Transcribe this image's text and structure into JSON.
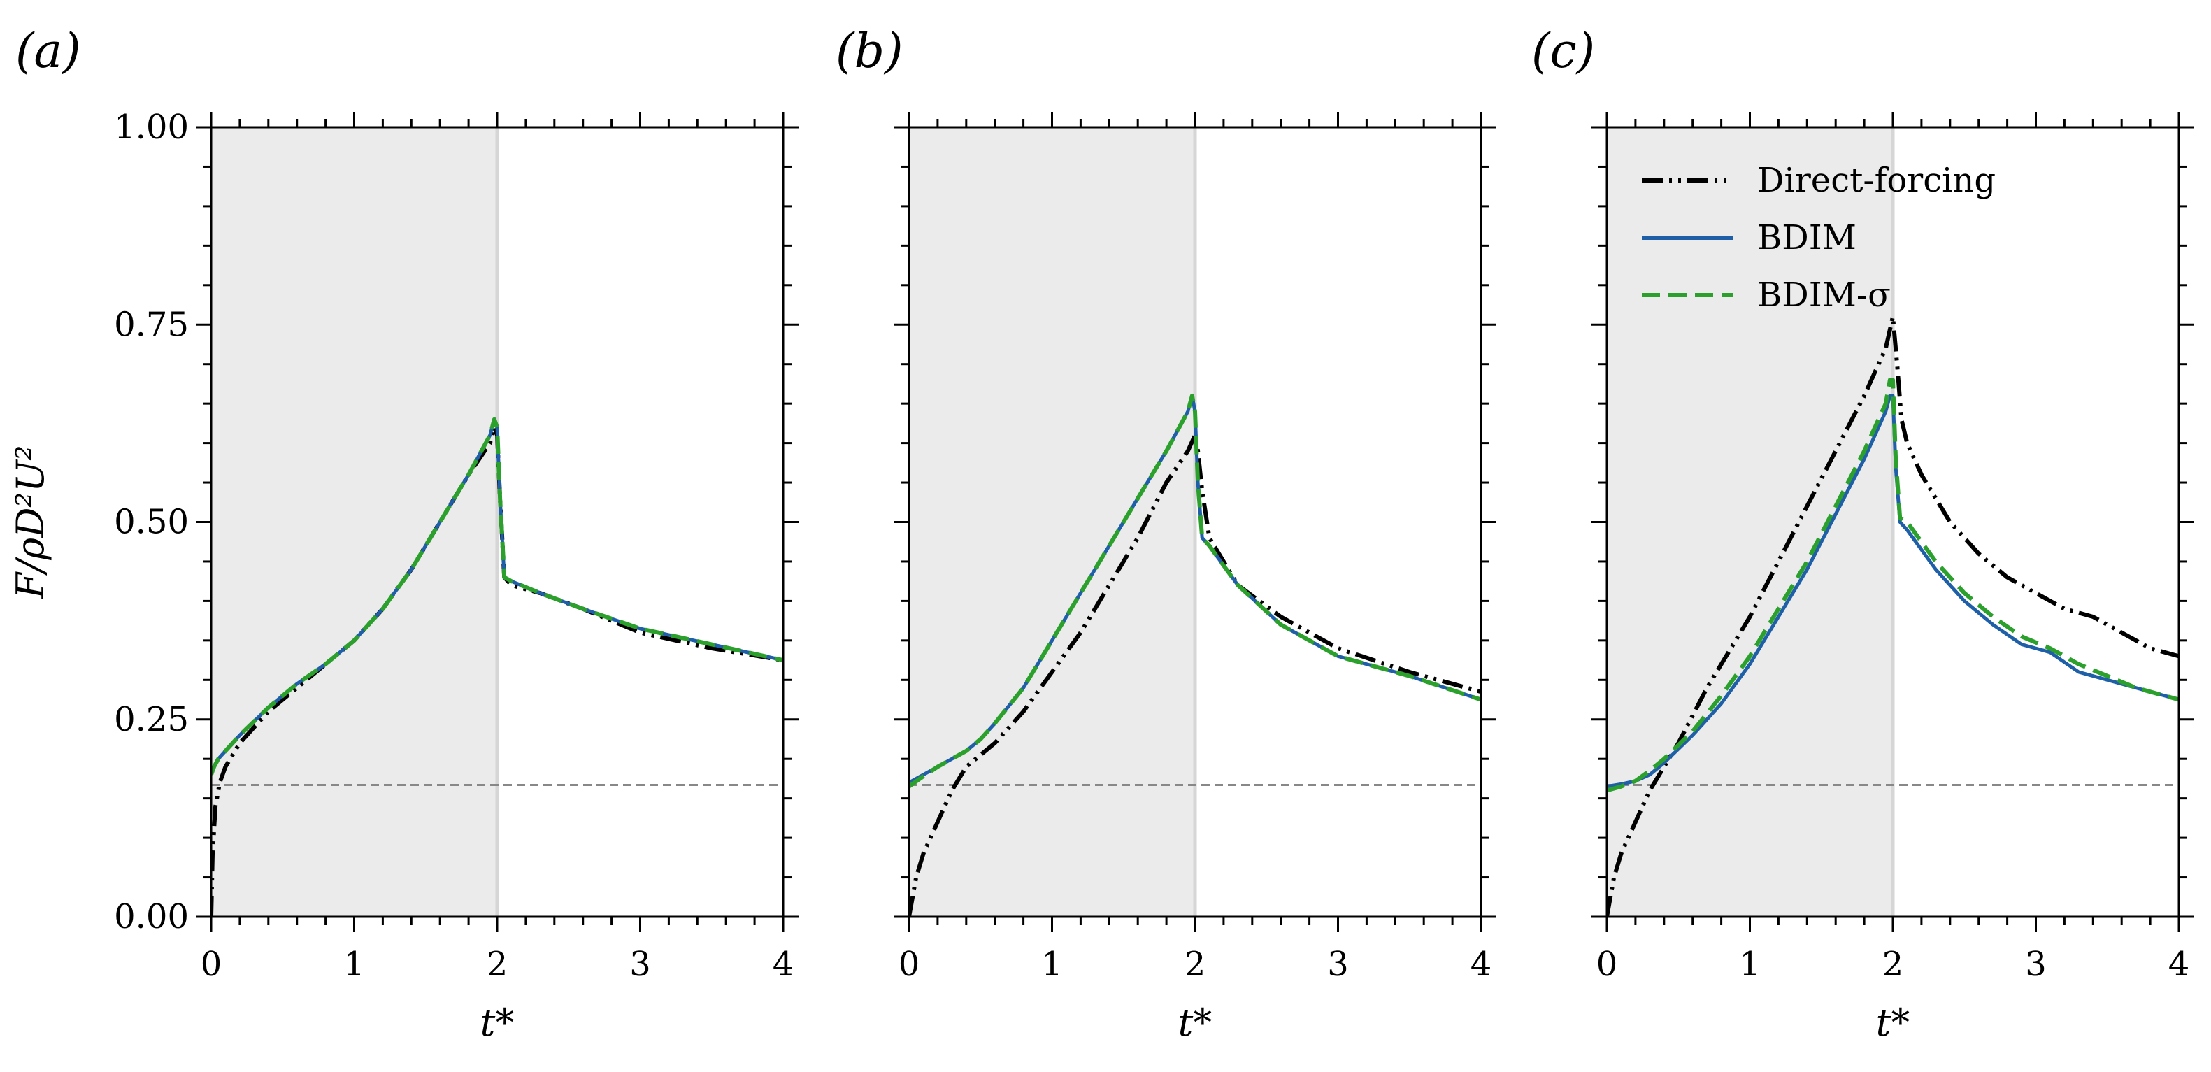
{
  "ylabel": "F/ρD²U²",
  "xlabel": "t*",
  "colors": {
    "direct_forcing": "#000000",
    "bdim": "#1f5fa8",
    "bdim_sigma": "#2ca02c",
    "shade": "#ebebeb",
    "reference_line": "#888888"
  },
  "legend": {
    "panel": 2,
    "location": "upper left",
    "entries": [
      {
        "label": "Direct-forcing",
        "style": "dash-dot-dot",
        "color": "#000000"
      },
      {
        "label": "BDIM",
        "style": "solid",
        "color": "#1f5fa8"
      },
      {
        "label": "BDIM-σ",
        "style": "dashed",
        "color": "#2ca02c"
      }
    ]
  },
  "chart_data": [
    {
      "type": "line",
      "panel_label": "(a)",
      "xlabel": "t*",
      "ylabel": "F/ρD²U²",
      "xlim": [
        0,
        4
      ],
      "ylim": [
        0,
        1
      ],
      "xticks": [
        "0",
        "1",
        "2",
        "3",
        "4"
      ],
      "yticks": [
        "0.00",
        "0.25",
        "0.50",
        "0.75",
        "1.00"
      ],
      "shaded_region": [
        0,
        2
      ],
      "reference_line_y": 0.167,
      "series": [
        {
          "name": "Direct-forcing",
          "style": "dash-dot-dot",
          "x": [
            0,
            0.01,
            0.03,
            0.06,
            0.1,
            0.2,
            0.4,
            0.6,
            0.8,
            1.0,
            1.2,
            1.4,
            1.6,
            1.8,
            1.95,
            1.98,
            2.0,
            2.02,
            2.05,
            2.1,
            2.3,
            2.6,
            3.0,
            3.5,
            4.0
          ],
          "y": [
            0.0,
            0.08,
            0.14,
            0.17,
            0.19,
            0.22,
            0.26,
            0.29,
            0.32,
            0.35,
            0.39,
            0.44,
            0.5,
            0.56,
            0.6,
            0.62,
            0.61,
            0.53,
            0.43,
            0.42,
            0.41,
            0.39,
            0.36,
            0.34,
            0.325
          ]
        },
        {
          "name": "BDIM",
          "style": "solid",
          "x": [
            0,
            0.02,
            0.05,
            0.1,
            0.2,
            0.4,
            0.6,
            0.8,
            1.0,
            1.2,
            1.4,
            1.6,
            1.8,
            1.95,
            1.98,
            2.0,
            2.02,
            2.05,
            2.1,
            2.3,
            2.6,
            3.0,
            3.5,
            4.0
          ],
          "y": [
            0.18,
            0.19,
            0.2,
            0.21,
            0.23,
            0.265,
            0.295,
            0.32,
            0.35,
            0.39,
            0.44,
            0.5,
            0.56,
            0.61,
            0.63,
            0.62,
            0.53,
            0.43,
            0.425,
            0.41,
            0.39,
            0.365,
            0.345,
            0.325
          ]
        },
        {
          "name": "BDIM-σ",
          "style": "dashed",
          "x": [
            0,
            0.02,
            0.05,
            0.1,
            0.2,
            0.4,
            0.6,
            0.8,
            1.0,
            1.2,
            1.4,
            1.6,
            1.8,
            1.95,
            1.98,
            2.0,
            2.02,
            2.05,
            2.1,
            2.3,
            2.6,
            3.0,
            3.5,
            4.0
          ],
          "y": [
            0.18,
            0.19,
            0.2,
            0.21,
            0.23,
            0.265,
            0.295,
            0.32,
            0.35,
            0.39,
            0.44,
            0.5,
            0.56,
            0.61,
            0.63,
            0.62,
            0.53,
            0.43,
            0.425,
            0.41,
            0.39,
            0.365,
            0.345,
            0.325
          ]
        }
      ]
    },
    {
      "type": "line",
      "panel_label": "(b)",
      "xlabel": "t*",
      "ylabel": "",
      "xlim": [
        0,
        4
      ],
      "ylim": [
        0,
        1
      ],
      "xticks": [
        "0",
        "1",
        "2",
        "3",
        "4"
      ],
      "yticks": [],
      "shaded_region": [
        0,
        2
      ],
      "reference_line_y": 0.167,
      "series": [
        {
          "name": "Direct-forcing",
          "style": "dash-dot-dot",
          "x": [
            0,
            0.05,
            0.1,
            0.2,
            0.3,
            0.4,
            0.6,
            0.8,
            1.0,
            1.2,
            1.4,
            1.6,
            1.8,
            1.95,
            2.0,
            2.02,
            2.05,
            2.1,
            2.3,
            2.6,
            3.0,
            3.5,
            4.0
          ],
          "y": [
            0.0,
            0.05,
            0.08,
            0.12,
            0.16,
            0.19,
            0.22,
            0.26,
            0.31,
            0.36,
            0.42,
            0.48,
            0.55,
            0.59,
            0.61,
            0.59,
            0.54,
            0.48,
            0.42,
            0.38,
            0.34,
            0.31,
            0.285
          ]
        },
        {
          "name": "BDIM",
          "style": "solid",
          "x": [
            0,
            0.1,
            0.2,
            0.3,
            0.4,
            0.5,
            0.6,
            0.8,
            1.0,
            1.2,
            1.4,
            1.6,
            1.8,
            1.95,
            1.98,
            2.0,
            2.02,
            2.05,
            2.1,
            2.3,
            2.6,
            3.0,
            3.5,
            4.0
          ],
          "y": [
            0.17,
            0.18,
            0.19,
            0.2,
            0.21,
            0.225,
            0.245,
            0.29,
            0.35,
            0.41,
            0.47,
            0.53,
            0.59,
            0.64,
            0.66,
            0.64,
            0.55,
            0.48,
            0.47,
            0.42,
            0.37,
            0.33,
            0.305,
            0.275
          ]
        },
        {
          "name": "BDIM-σ",
          "style": "dashed",
          "x": [
            0,
            0.1,
            0.2,
            0.3,
            0.4,
            0.5,
            0.6,
            0.8,
            1.0,
            1.2,
            1.4,
            1.6,
            1.8,
            1.95,
            1.98,
            2.0,
            2.02,
            2.05,
            2.1,
            2.3,
            2.6,
            3.0,
            3.5,
            4.0
          ],
          "y": [
            0.165,
            0.178,
            0.19,
            0.2,
            0.21,
            0.225,
            0.245,
            0.29,
            0.35,
            0.41,
            0.47,
            0.53,
            0.59,
            0.64,
            0.66,
            0.64,
            0.55,
            0.48,
            0.47,
            0.42,
            0.37,
            0.33,
            0.305,
            0.275
          ]
        }
      ]
    },
    {
      "type": "line",
      "panel_label": "(c)",
      "xlabel": "t*",
      "ylabel": "",
      "xlim": [
        0,
        4
      ],
      "ylim": [
        0,
        1
      ],
      "xticks": [
        "0",
        "1",
        "2",
        "3",
        "4"
      ],
      "yticks": [],
      "shaded_region": [
        0,
        2
      ],
      "reference_line_y": 0.167,
      "series": [
        {
          "name": "Direct-forcing",
          "style": "dash-dot-dot",
          "x": [
            0,
            0.05,
            0.1,
            0.2,
            0.3,
            0.5,
            0.7,
            0.9,
            1.0,
            1.2,
            1.4,
            1.6,
            1.8,
            1.95,
            2.0,
            2.03,
            2.06,
            2.1,
            2.2,
            2.4,
            2.6,
            2.8,
            3.0,
            3.2,
            3.4,
            3.6,
            3.8,
            4.0
          ],
          "y": [
            0.0,
            0.05,
            0.08,
            0.12,
            0.16,
            0.22,
            0.29,
            0.35,
            0.38,
            0.45,
            0.52,
            0.59,
            0.66,
            0.72,
            0.76,
            0.7,
            0.63,
            0.6,
            0.56,
            0.5,
            0.46,
            0.43,
            0.41,
            0.39,
            0.38,
            0.36,
            0.34,
            0.33
          ]
        },
        {
          "name": "BDIM",
          "style": "solid",
          "x": [
            0,
            0.1,
            0.2,
            0.3,
            0.4,
            0.6,
            0.8,
            1.0,
            1.2,
            1.4,
            1.6,
            1.8,
            1.95,
            1.98,
            2.0,
            2.02,
            2.05,
            2.1,
            2.3,
            2.5,
            2.7,
            2.9,
            3.1,
            3.3,
            3.5,
            3.7,
            4.0
          ],
          "y": [
            0.165,
            0.168,
            0.172,
            0.18,
            0.195,
            0.23,
            0.27,
            0.32,
            0.38,
            0.44,
            0.51,
            0.58,
            0.64,
            0.66,
            0.66,
            0.57,
            0.5,
            0.49,
            0.44,
            0.4,
            0.37,
            0.345,
            0.335,
            0.31,
            0.3,
            0.29,
            0.275
          ]
        },
        {
          "name": "BDIM-σ",
          "style": "dashed",
          "x": [
            0,
            0.1,
            0.2,
            0.3,
            0.4,
            0.6,
            0.8,
            1.0,
            1.2,
            1.4,
            1.6,
            1.8,
            1.95,
            1.98,
            2.0,
            2.02,
            2.05,
            2.1,
            2.3,
            2.5,
            2.7,
            2.9,
            3.1,
            3.3,
            3.5,
            3.7,
            4.0
          ],
          "y": [
            0.16,
            0.165,
            0.172,
            0.185,
            0.2,
            0.235,
            0.28,
            0.33,
            0.39,
            0.45,
            0.52,
            0.59,
            0.65,
            0.68,
            0.68,
            0.58,
            0.505,
            0.5,
            0.45,
            0.41,
            0.38,
            0.355,
            0.34,
            0.32,
            0.305,
            0.29,
            0.275
          ]
        }
      ]
    }
  ]
}
